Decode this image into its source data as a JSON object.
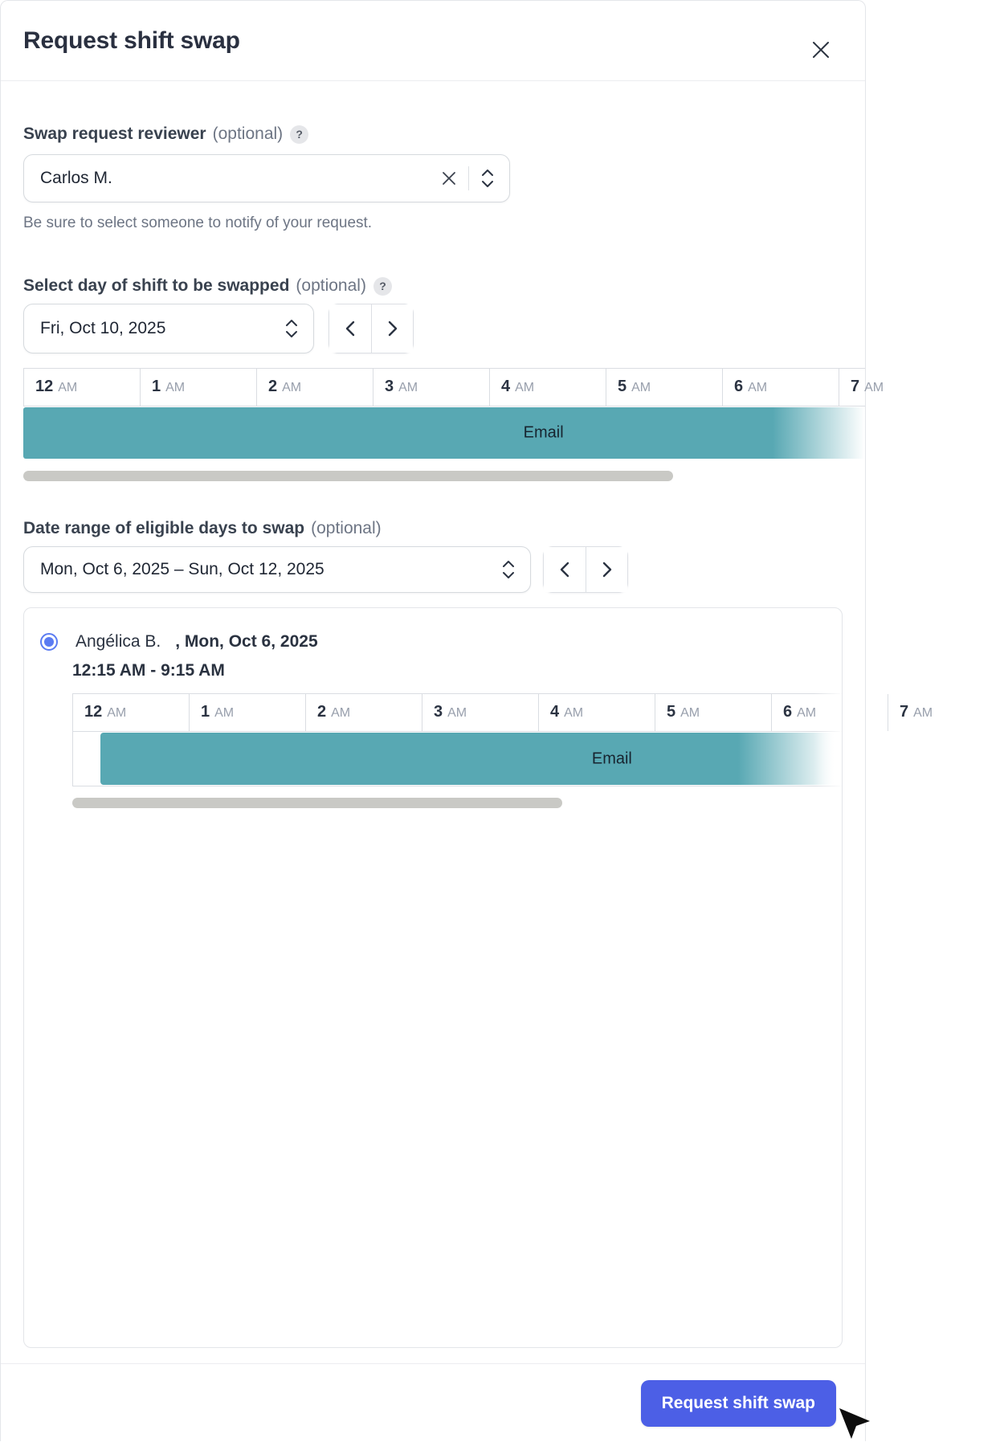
{
  "dialog": {
    "title": "Request shift swap"
  },
  "icons": {
    "help": "?"
  },
  "reviewer": {
    "label": "Swap request reviewer",
    "optional_tag": "(optional)",
    "value": "Carlos M.",
    "note": "Be sure to select someone to notify of your request."
  },
  "shift_day": {
    "label": "Select day of shift to be swapped",
    "optional_tag": "(optional)",
    "value": "Fri, Oct 10, 2025"
  },
  "timeline": {
    "hours": [
      "12 AM",
      "1 AM",
      "2 AM",
      "3 AM",
      "4 AM",
      "5 AM",
      "6 AM",
      "7 AM"
    ],
    "shift_label": "Email"
  },
  "date_range": {
    "label": "Date range of eligible days to swap",
    "optional_tag": "(optional)",
    "value": "Mon, Oct 6, 2025 – Sun, Oct 12, 2025"
  },
  "swap_candidate": {
    "name": "Angélica B.",
    "date_suffix": ", Mon, Oct 6, 2025",
    "time_range": "12:15 AM - 9:15 AM",
    "shift_label": "Email",
    "selected": true
  },
  "footer": {
    "submit_label": "Request shift swap"
  },
  "colors": {
    "shift_teal": "#58a8b3",
    "primary_blue": "#4c5fe6",
    "radio_blue": "#5b7cf2"
  }
}
